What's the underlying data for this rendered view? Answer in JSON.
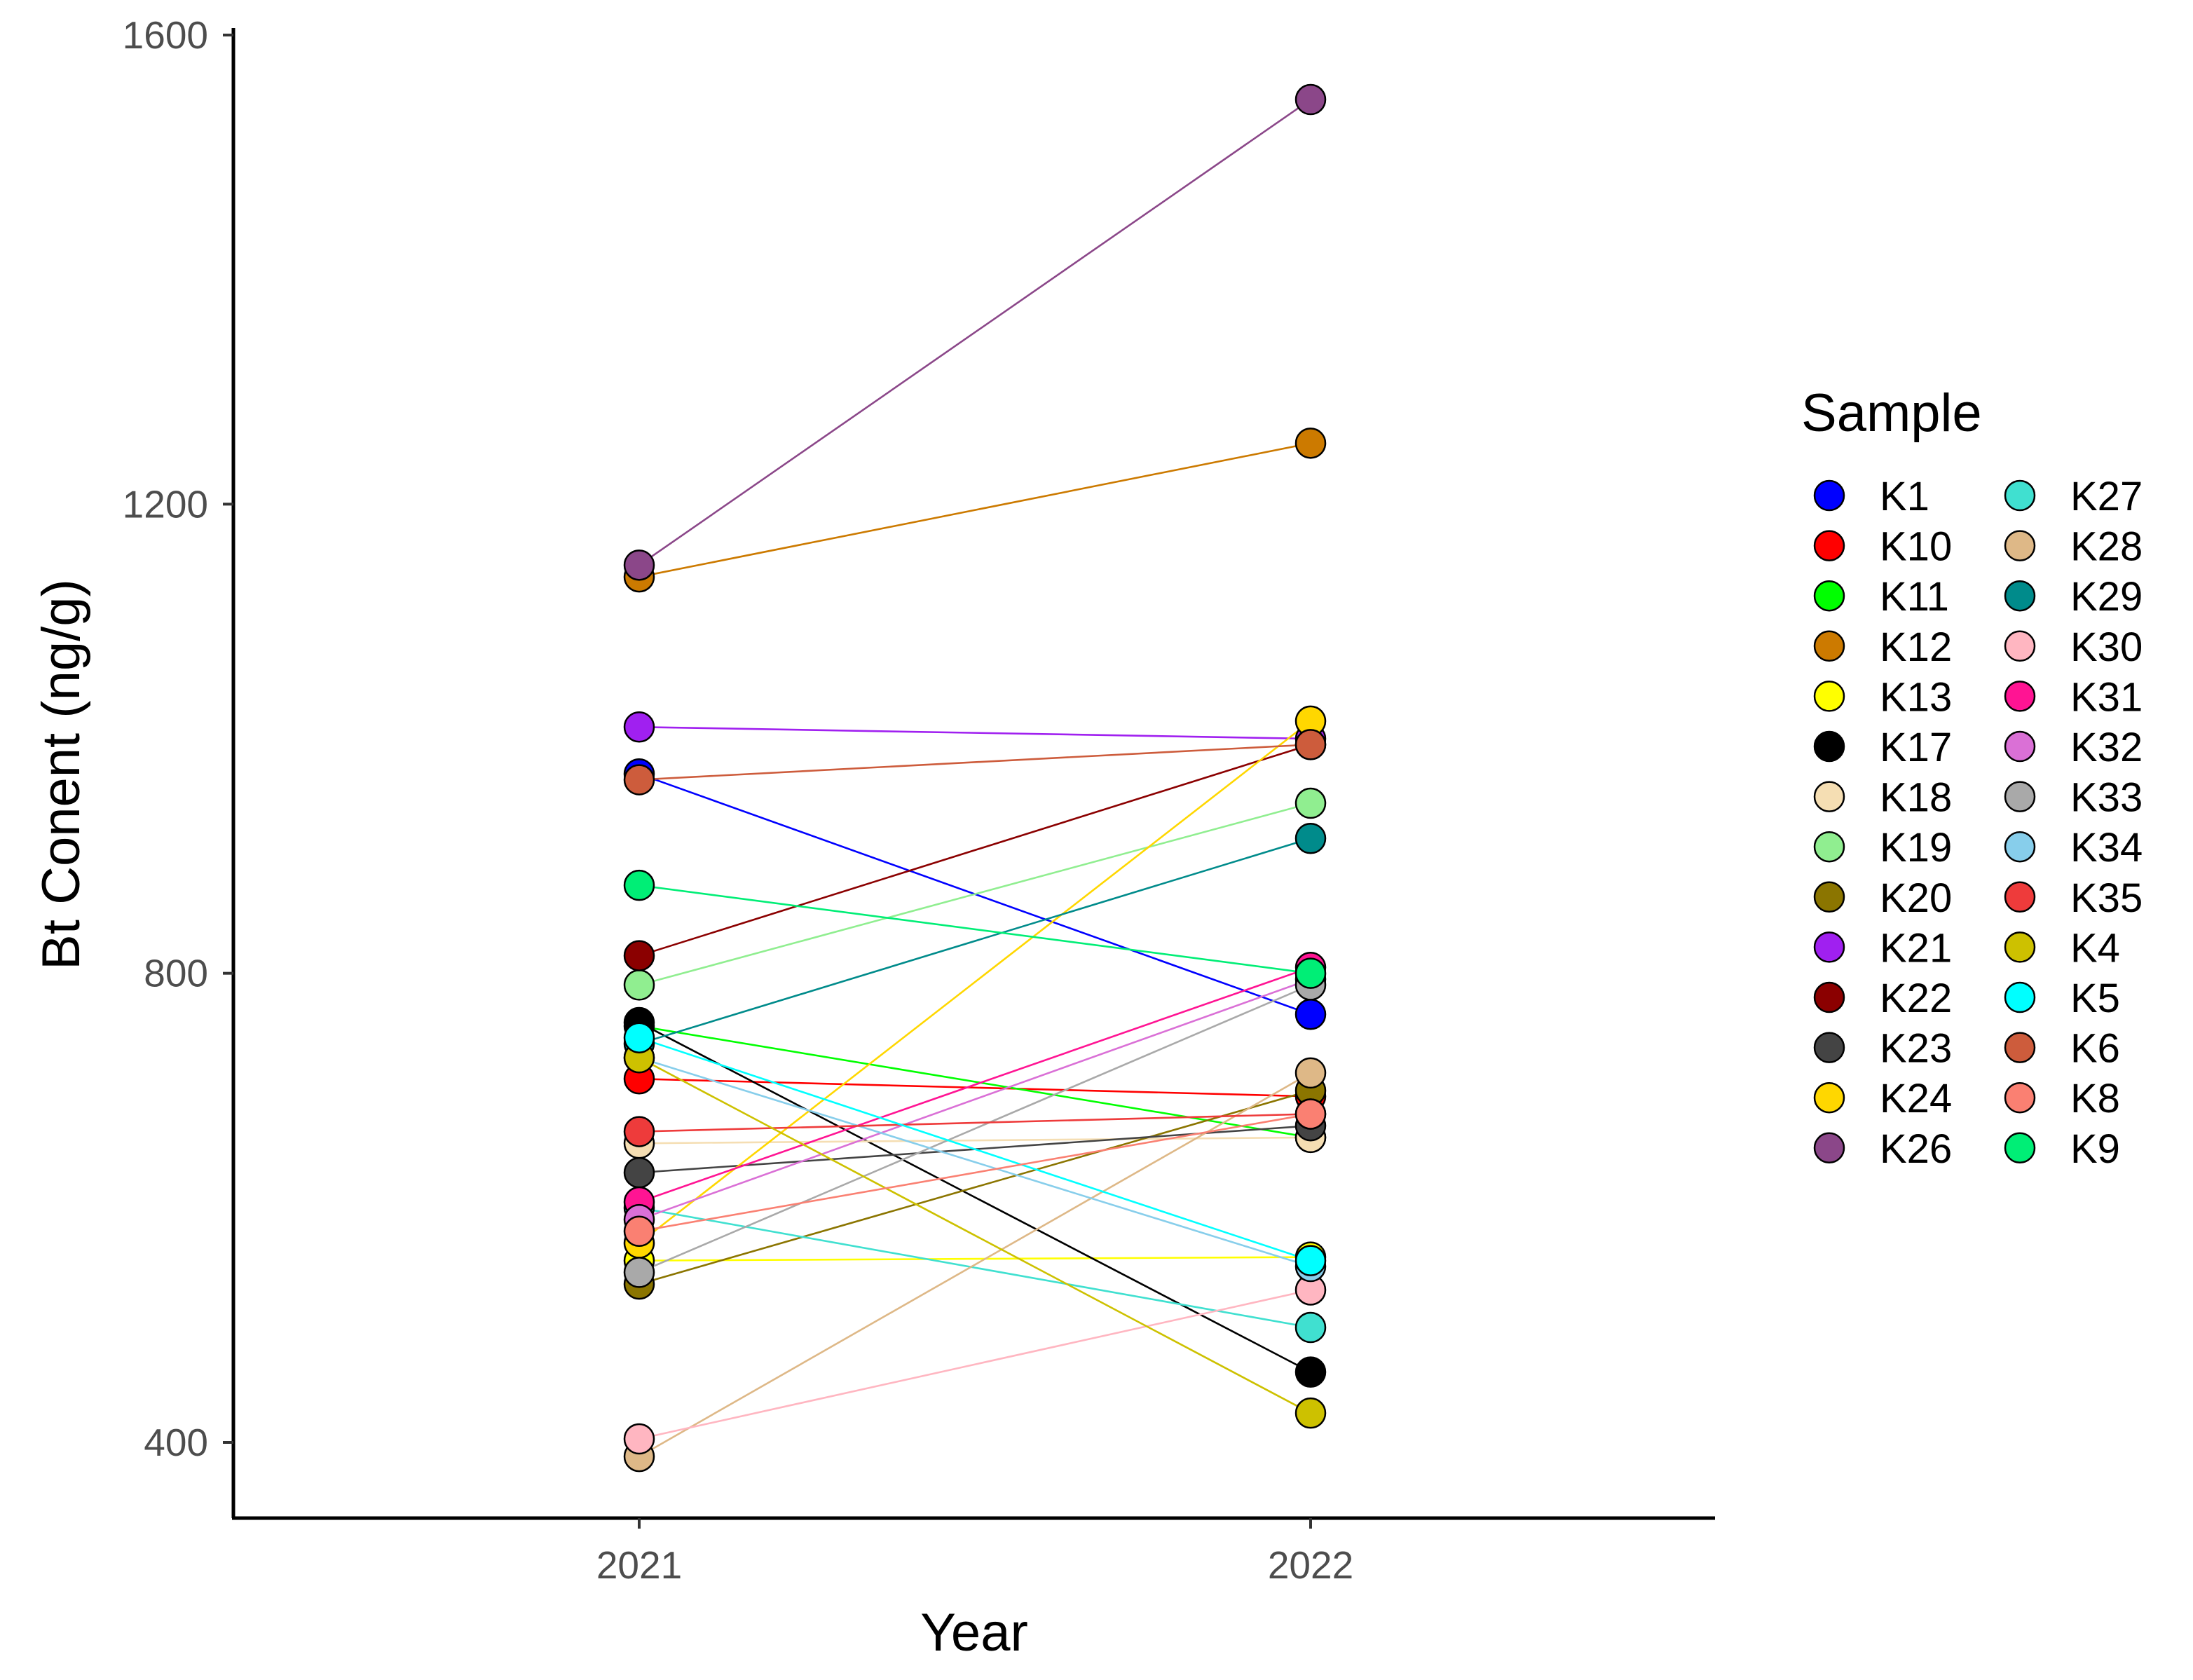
{
  "chart_data": {
    "type": "line",
    "xlabel": "Year",
    "ylabel": "Bt Conent (ng/g)",
    "x": [
      "2021",
      "2022"
    ],
    "yticks": [
      400,
      800,
      1200,
      1600
    ],
    "ylim": [
      330,
      1605
    ],
    "grid": false,
    "legend": {
      "title": "Sample",
      "placement": "right",
      "columns": 2
    },
    "series": [
      {
        "name": "K1",
        "color": "#0000FF",
        "values": [
          970,
          765
        ]
      },
      {
        "name": "K10",
        "color": "#FF0000",
        "values": [
          710,
          695
        ]
      },
      {
        "name": "K11",
        "color": "#00FF00",
        "values": [
          755,
          660
        ]
      },
      {
        "name": "K12",
        "color": "#CC7A00",
        "values": [
          1138,
          1252
        ]
      },
      {
        "name": "K13",
        "color": "#FFFF00",
        "values": [
          555,
          558
        ]
      },
      {
        "name": "K17",
        "color": "#000000",
        "values": [
          758,
          460
        ]
      },
      {
        "name": "K18",
        "color": "#F5DEB3",
        "values": [
          655,
          660
        ]
      },
      {
        "name": "K19",
        "color": "#90EE90",
        "values": [
          790,
          945
        ]
      },
      {
        "name": "K20",
        "color": "#8B7500",
        "values": [
          535,
          700
        ]
      },
      {
        "name": "K21",
        "color": "#A020F0",
        "values": [
          1010,
          1000
        ]
      },
      {
        "name": "K22",
        "color": "#8B0000",
        "values": [
          815,
          995
        ]
      },
      {
        "name": "K23",
        "color": "#444444",
        "values": [
          630,
          670
        ]
      },
      {
        "name": "K24",
        "color": "#FFD700",
        "values": [
          570,
          1015
        ]
      },
      {
        "name": "K26",
        "color": "#8B4789",
        "values": [
          1148,
          1545
        ]
      },
      {
        "name": "K27",
        "color": "#40E0D0",
        "values": [
          600,
          498
        ]
      },
      {
        "name": "K28",
        "color": "#DEB887",
        "values": [
          388,
          715
        ]
      },
      {
        "name": "K29",
        "color": "#008B8B",
        "values": [
          740,
          915
        ]
      },
      {
        "name": "K30",
        "color": "#FFB6C1",
        "values": [
          403,
          530
        ]
      },
      {
        "name": "K31",
        "color": "#FF1493",
        "values": [
          605,
          805
        ]
      },
      {
        "name": "K32",
        "color": "#DA70D6",
        "values": [
          590,
          795
        ]
      },
      {
        "name": "K33",
        "color": "#A9A9A9",
        "values": [
          545,
          790
        ]
      },
      {
        "name": "K34",
        "color": "#87CEEB",
        "values": [
          728,
          550
        ]
      },
      {
        "name": "K35",
        "color": "#EE3B3B",
        "values": [
          665,
          680
        ]
      },
      {
        "name": "K4",
        "color": "#CDC100",
        "values": [
          728,
          425
        ]
      },
      {
        "name": "K5",
        "color": "#00FFFF",
        "values": [
          745,
          555
        ]
      },
      {
        "name": "K6",
        "color": "#CD5C3C",
        "values": [
          965,
          995
        ]
      },
      {
        "name": "K8",
        "color": "#FA8072",
        "values": [
          580,
          680
        ]
      },
      {
        "name": "K9",
        "color": "#00EE76",
        "values": [
          875,
          800
        ]
      }
    ]
  }
}
